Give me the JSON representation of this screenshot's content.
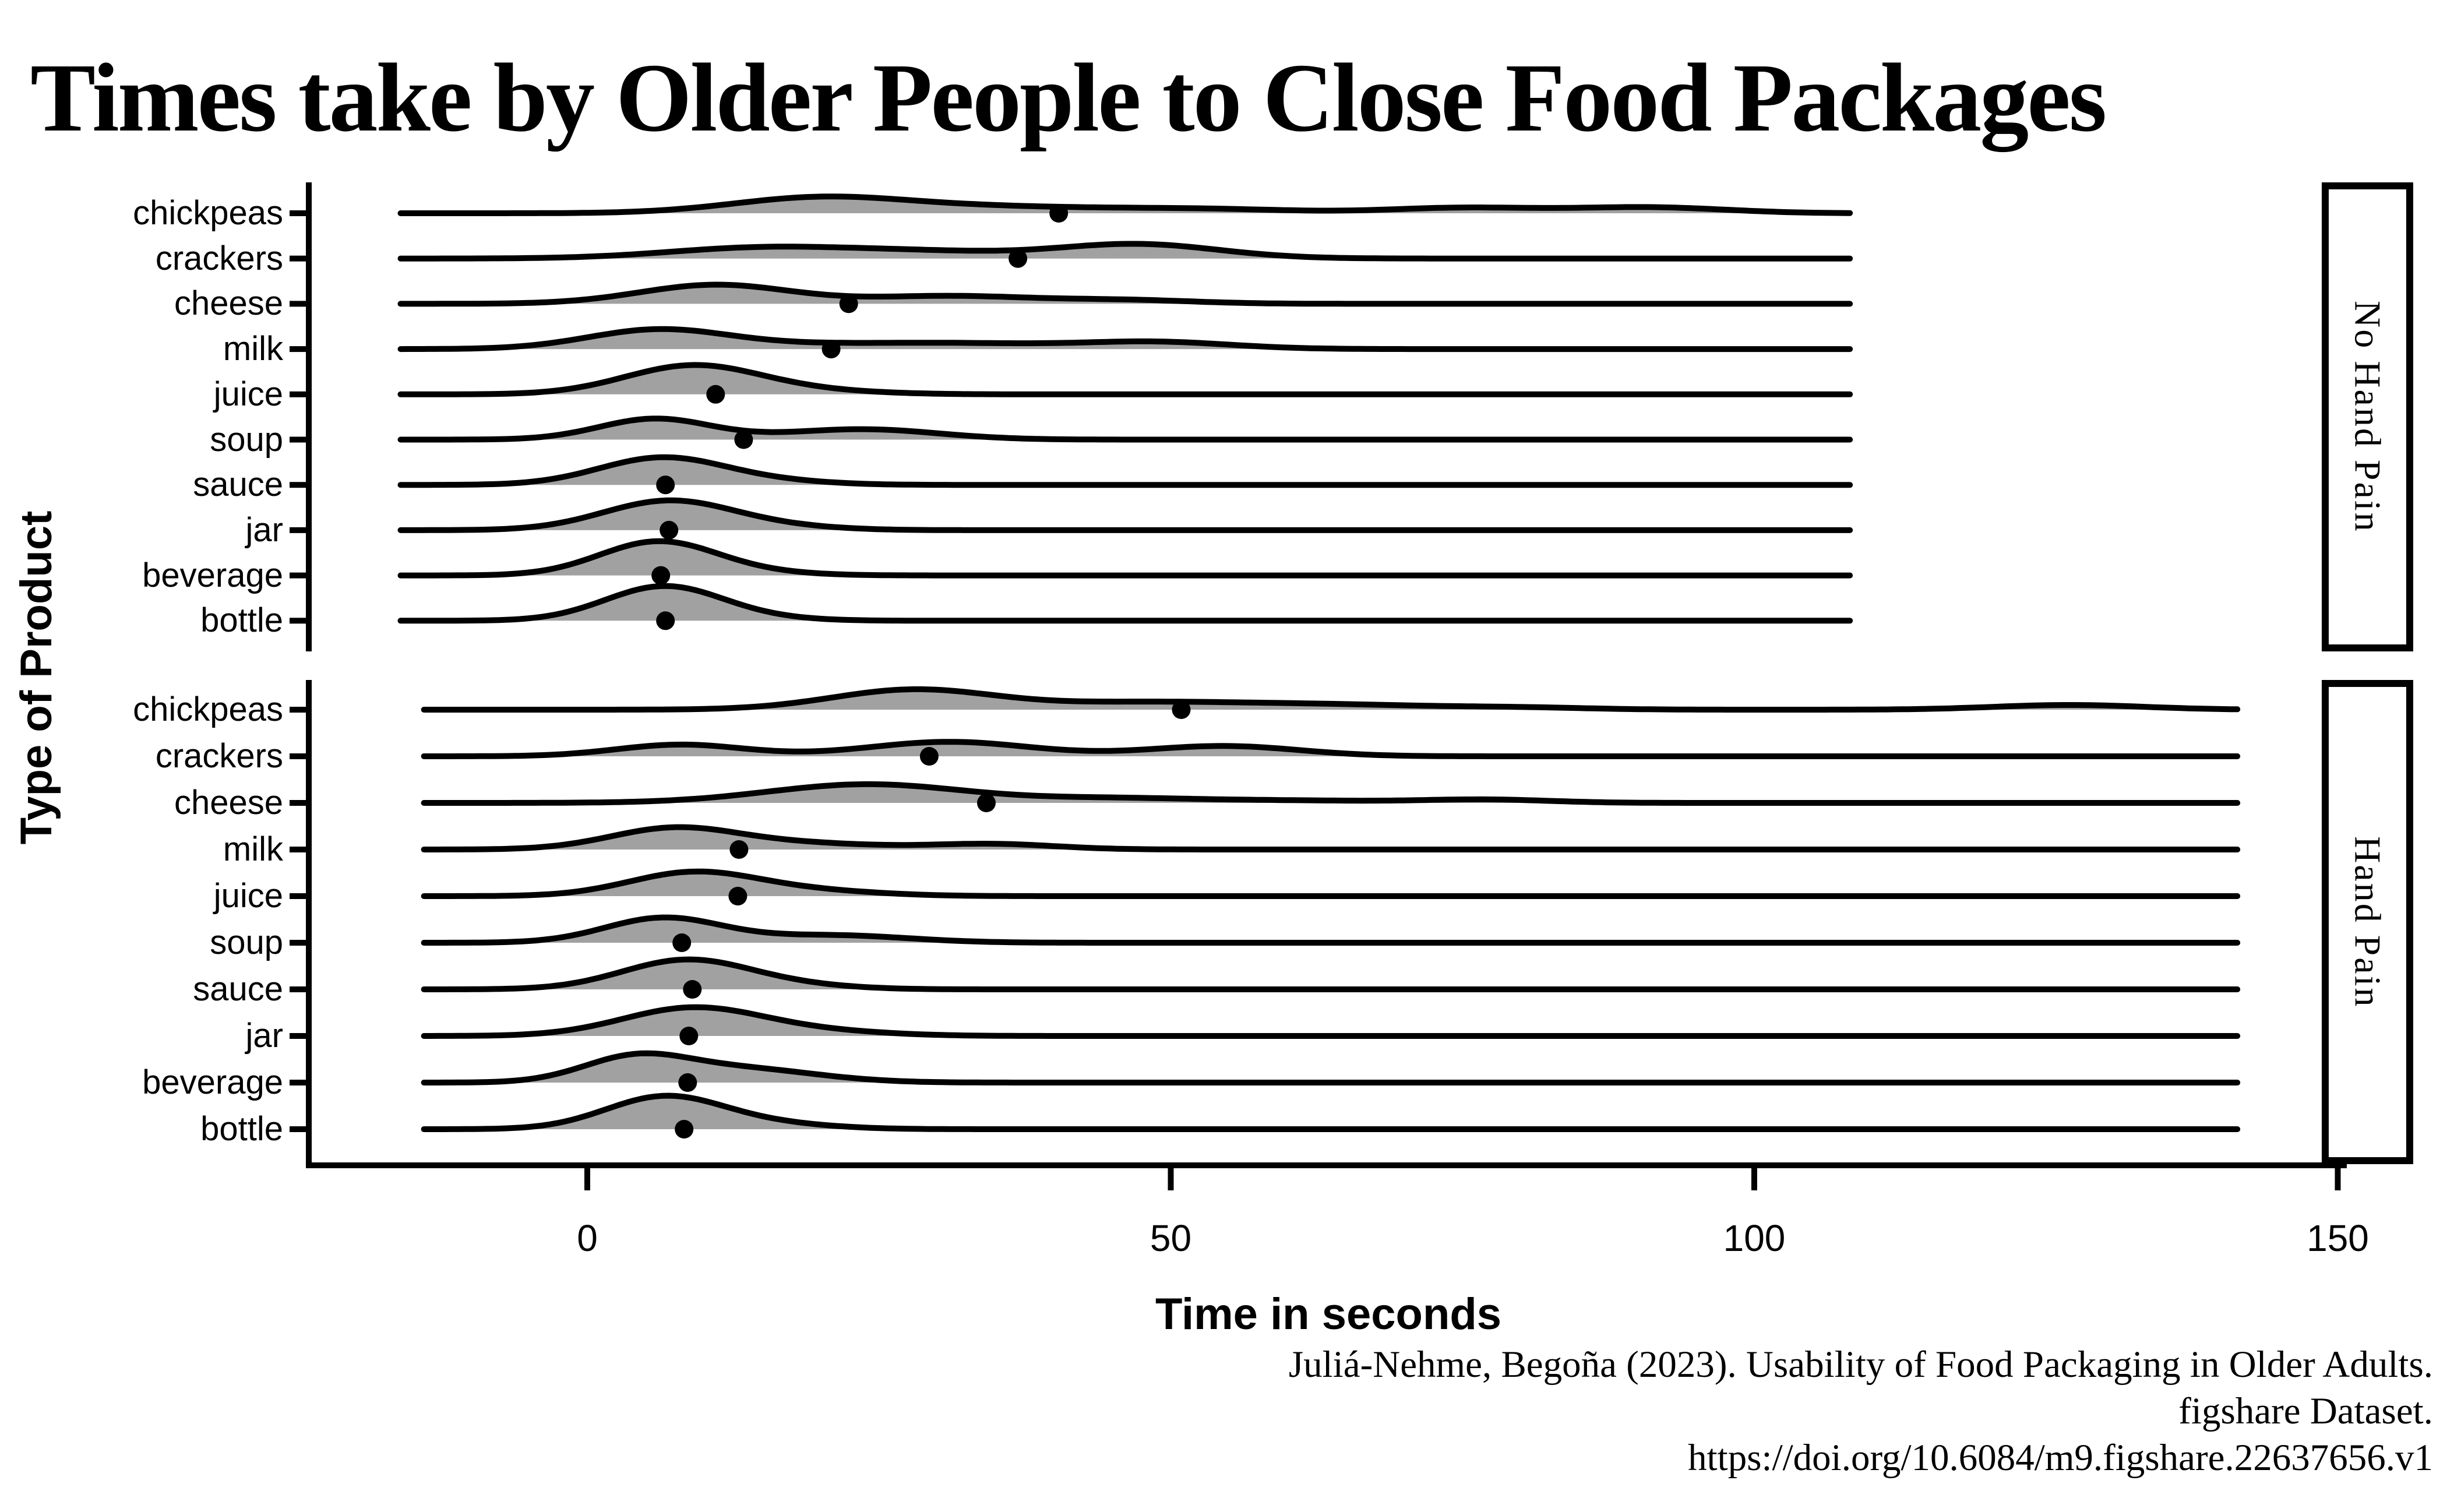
{
  "title": "Times take by Older People to Close Food Packages",
  "x_axis": {
    "title": "Time in seconds",
    "ticks": [
      0,
      50,
      100,
      150
    ]
  },
  "y_axis": {
    "title": "Type of Product",
    "categories": [
      "chickpeas",
      "crackers",
      "cheese",
      "milk",
      "juice",
      "soup",
      "sauce",
      "jar",
      "beverage",
      "bottle"
    ]
  },
  "caption": {
    "lines": [
      "Juliá-Nehme, Begoña (2023). Usability of Food Packaging in Older Adults.",
      "figshare Dataset.",
      "https://doi.org/10.6084/m9.figshare.22637656.v1"
    ]
  },
  "colors": {
    "background": "#ffffff",
    "ridge_fill": "#a1a1a1",
    "ridge_line": "#000000",
    "mean_dot": "#000000",
    "axis": "#000000",
    "text": "#000000",
    "strip_fill": "#ffffff",
    "strip_border": "#000000"
  },
  "chart_data": {
    "type": "ridgeline",
    "title": "Times take by Older People to Close Food Packages",
    "xlabel": "Time in seconds",
    "ylabel": "Type of Product",
    "x_ticks": [
      0,
      50,
      100,
      150
    ],
    "xlim": [
      -25,
      160
    ],
    "categories_top_to_bottom": [
      "chickpeas",
      "crackers",
      "cheese",
      "milk",
      "juice",
      "soup",
      "sauce",
      "jar",
      "beverage",
      "bottle"
    ],
    "legend": "none",
    "grid": "off",
    "mark_meaning": "black dot on each baseline = mean time in seconds; curve = density of times, peak height in fractions of row spacing",
    "facets": [
      {
        "label": "No Hand Pain",
        "strip_side": "right",
        "curve_range_seconds": [
          -16,
          108.5
        ],
        "rows": [
          {
            "category": "chickpeas",
            "mean_seconds": 40.4,
            "density_bumps": [
              [
                20,
                7.5,
                0.35
              ],
              [
                33,
                7,
                0.1
              ],
              [
                43,
                7,
                0.07
              ],
              [
                54,
                7,
                0.08
              ],
              [
                75,
                6.5,
                0.12
              ],
              [
                91,
                6.5,
                0.13
              ]
            ]
          },
          {
            "category": "crackers",
            "mean_seconds": 36.9,
            "density_bumps": [
              [
                15,
                8,
                0.24
              ],
              [
                29,
                7,
                0.13
              ],
              [
                47,
                7,
                0.32
              ]
            ]
          },
          {
            "category": "cheese",
            "mean_seconds": 22.4,
            "density_bumps": [
              [
                11,
                6.5,
                0.42
              ],
              [
                31,
                7,
                0.17
              ],
              [
                46,
                6,
                0.08
              ]
            ]
          },
          {
            "category": "milk",
            "mean_seconds": 20.9,
            "density_bumps": [
              [
                6,
                6,
                0.42
              ],
              [
                20,
                8,
                0.1
              ],
              [
                33,
                7,
                0.1
              ],
              [
                48.5,
                6.5,
                0.16
              ]
            ]
          },
          {
            "category": "juice",
            "mean_seconds": 11.0,
            "density_bumps": [
              [
                9,
                5.8,
                0.63
              ],
              [
                19,
                6,
                0.07
              ]
            ]
          },
          {
            "category": "soup",
            "mean_seconds": 13.4,
            "density_bumps": [
              [
                5.8,
                4.8,
                0.46
              ],
              [
                23.5,
                6.5,
                0.23
              ]
            ]
          },
          {
            "category": "sauce",
            "mean_seconds": 6.7,
            "density_bumps": [
              [
                6.4,
                5.4,
                0.6
              ],
              [
                16,
                5,
                0.07
              ]
            ]
          },
          {
            "category": "jar",
            "mean_seconds": 7.0,
            "density_bumps": [
              [
                7,
                5.6,
                0.65
              ],
              [
                17,
                5,
                0.06
              ]
            ]
          },
          {
            "category": "beverage",
            "mean_seconds": 6.3,
            "density_bumps": [
              [
                6,
                5,
                0.74
              ],
              [
                14,
                5,
                0.06
              ]
            ]
          },
          {
            "category": "bottle",
            "mean_seconds": 6.7,
            "density_bumps": [
              [
                6.5,
                5,
                0.75
              ],
              [
                14,
                5,
                0.05
              ]
            ]
          }
        ]
      },
      {
        "label": "Hand Pain",
        "strip_side": "right",
        "curve_range_seconds": [
          -14,
          141.5
        ],
        "rows": [
          {
            "category": "chickpeas",
            "mean_seconds": 50.9,
            "density_bumps": [
              [
                28,
                7,
                0.43
              ],
              [
                47,
                8,
                0.14
              ],
              [
                63,
                9,
                0.11
              ],
              [
                80,
                6,
                0.04
              ],
              [
                127,
                6.5,
                0.1
              ]
            ]
          },
          {
            "category": "crackers",
            "mean_seconds": 29.3,
            "density_bumps": [
              [
                8,
                5.5,
                0.25
              ],
              [
                31,
                7,
                0.31
              ],
              [
                54.5,
                6.5,
                0.22
              ]
            ]
          },
          {
            "category": "cheese",
            "mean_seconds": 34.2,
            "density_bumps": [
              [
                24,
                8.5,
                0.4
              ],
              [
                45,
                7,
                0.09
              ],
              [
                60,
                8,
                0.05
              ],
              [
                77,
                5.5,
                0.07
              ]
            ]
          },
          {
            "category": "milk",
            "mean_seconds": 13.0,
            "density_bumps": [
              [
                7.5,
                5.5,
                0.46
              ],
              [
                19,
                6,
                0.12
              ],
              [
                34.5,
                5.5,
                0.12
              ]
            ]
          },
          {
            "category": "juice",
            "mean_seconds": 12.9,
            "density_bumps": [
              [
                9,
                5.5,
                0.5
              ],
              [
                19,
                6,
                0.11
              ]
            ]
          },
          {
            "category": "soup",
            "mean_seconds": 8.1,
            "density_bumps": [
              [
                6.5,
                5,
                0.53
              ],
              [
                21,
                6.5,
                0.16
              ]
            ]
          },
          {
            "category": "sauce",
            "mean_seconds": 9.0,
            "density_bumps": [
              [
                8.5,
                5.5,
                0.63
              ],
              [
                18,
                5,
                0.07
              ]
            ]
          },
          {
            "category": "jar",
            "mean_seconds": 8.7,
            "density_bumps": [
              [
                9,
                6,
                0.6
              ],
              [
                20,
                6,
                0.09
              ]
            ]
          },
          {
            "category": "beverage",
            "mean_seconds": 8.6,
            "density_bumps": [
              [
                4,
                4.5,
                0.5
              ],
              [
                13,
                6.5,
                0.3
              ]
            ]
          },
          {
            "category": "bottle",
            "mean_seconds": 8.3,
            "density_bumps": [
              [
                6.5,
                5,
                0.68
              ],
              [
                15,
                5.5,
                0.12
              ]
            ]
          }
        ]
      }
    ]
  }
}
